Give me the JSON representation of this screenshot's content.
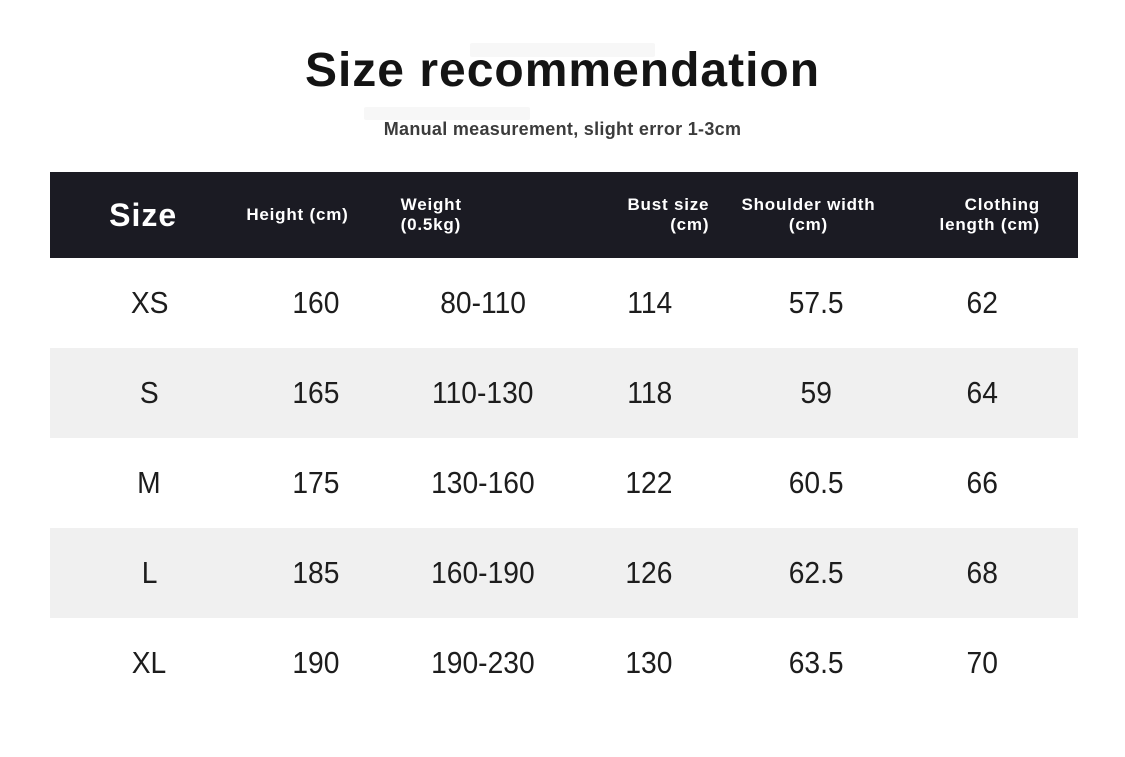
{
  "page": {
    "title": "Size recommendation",
    "subtitle": "Manual measurement, slight error 1-3cm"
  },
  "table": {
    "columns": [
      {
        "id": "size",
        "lines": [
          "Size"
        ]
      },
      {
        "id": "height",
        "lines": [
          "Height (cm)"
        ]
      },
      {
        "id": "weight",
        "lines": [
          "Weight",
          "(0.5kg)"
        ]
      },
      {
        "id": "bust",
        "lines": [
          "Bust size",
          "(cm)"
        ]
      },
      {
        "id": "shoulder",
        "lines": [
          "Shoulder width",
          "(cm)"
        ]
      },
      {
        "id": "clothing_length",
        "lines": [
          "Clothing",
          "length (cm)"
        ]
      }
    ],
    "rows": [
      [
        "XS",
        "160",
        "80-110",
        "114",
        "57.5",
        "62"
      ],
      [
        "S",
        "165",
        "110-130",
        "118",
        "59",
        "64"
      ],
      [
        "M",
        "175",
        "130-160",
        "122",
        "60.5",
        "66"
      ],
      [
        "L",
        "185",
        "160-190",
        "126",
        "62.5",
        "68"
      ],
      [
        "XL",
        "190",
        "190-230",
        "130",
        "63.5",
        "70"
      ]
    ]
  },
  "colors": {
    "header_bg": "#1b1b23",
    "stripe_bg": "#f0f0f0",
    "title_color": "#141414",
    "subtitle_color": "#3c3c3c",
    "data_color": "#1d1d1d",
    "header_text": "#ffffff",
    "page_bg": "#ffffff"
  }
}
